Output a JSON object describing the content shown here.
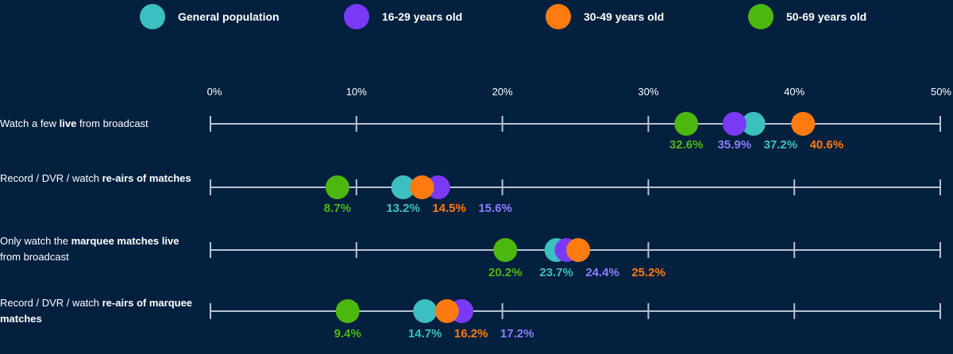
{
  "chart_data": {
    "type": "scatter",
    "x_axis": {
      "min": 0,
      "max": 50,
      "ticks": [
        0,
        10,
        20,
        30,
        40,
        50
      ],
      "tick_labels": [
        "0%",
        "10%",
        "20%",
        "30%",
        "40%",
        "50%"
      ]
    },
    "series": [
      {
        "name": "General population",
        "color": "#3bbfbf"
      },
      {
        "name": "16-29 years old",
        "color": "#7a3af5"
      },
      {
        "name": "30-49 years old",
        "color": "#ff7a0f"
      },
      {
        "name": "50-69 years old",
        "color": "#4cb80f"
      }
    ],
    "label_colors": [
      "#3bbfbf",
      "#8f7dff",
      "#ff7a0f",
      "#4cb80f"
    ],
    "rows": [
      {
        "label": [
          {
            "text": "Watch a few ",
            "bold": false
          },
          {
            "text": "live",
            "bold": true
          },
          {
            "text": " from broadcast",
            "bold": false
          }
        ],
        "values": [
          37.2,
          35.9,
          40.6,
          32.6
        ],
        "value_labels": [
          "37.2%",
          "35.9%",
          "40.6%",
          "32.6%"
        ]
      },
      {
        "label": [
          {
            "text": "Record / DVR / watch ",
            "bold": false
          },
          {
            "text": "re-airs of matches",
            "bold": true
          }
        ],
        "values": [
          13.2,
          15.6,
          14.5,
          8.7
        ],
        "value_labels": [
          "13.2%",
          "15.6%",
          "14.5%",
          "8.7%"
        ]
      },
      {
        "label": [
          {
            "text": "Only watch the ",
            "bold": false
          },
          {
            "text": "marquee matches live",
            "bold": true
          },
          {
            "text": " from broadcast",
            "bold": false
          }
        ],
        "values": [
          23.7,
          24.4,
          25.2,
          20.2
        ],
        "value_labels": [
          "23.7%",
          "24.4%",
          "25.2%",
          "20.2%"
        ]
      },
      {
        "label": [
          {
            "text": "Record / DVR / watch ",
            "bold": false
          },
          {
            "text": "re-airs of marquee matches",
            "bold": true
          }
        ],
        "values": [
          14.7,
          17.2,
          16.2,
          9.4
        ],
        "value_labels": [
          "14.7%",
          "17.2%",
          "16.2%",
          "9.4%"
        ]
      }
    ]
  }
}
